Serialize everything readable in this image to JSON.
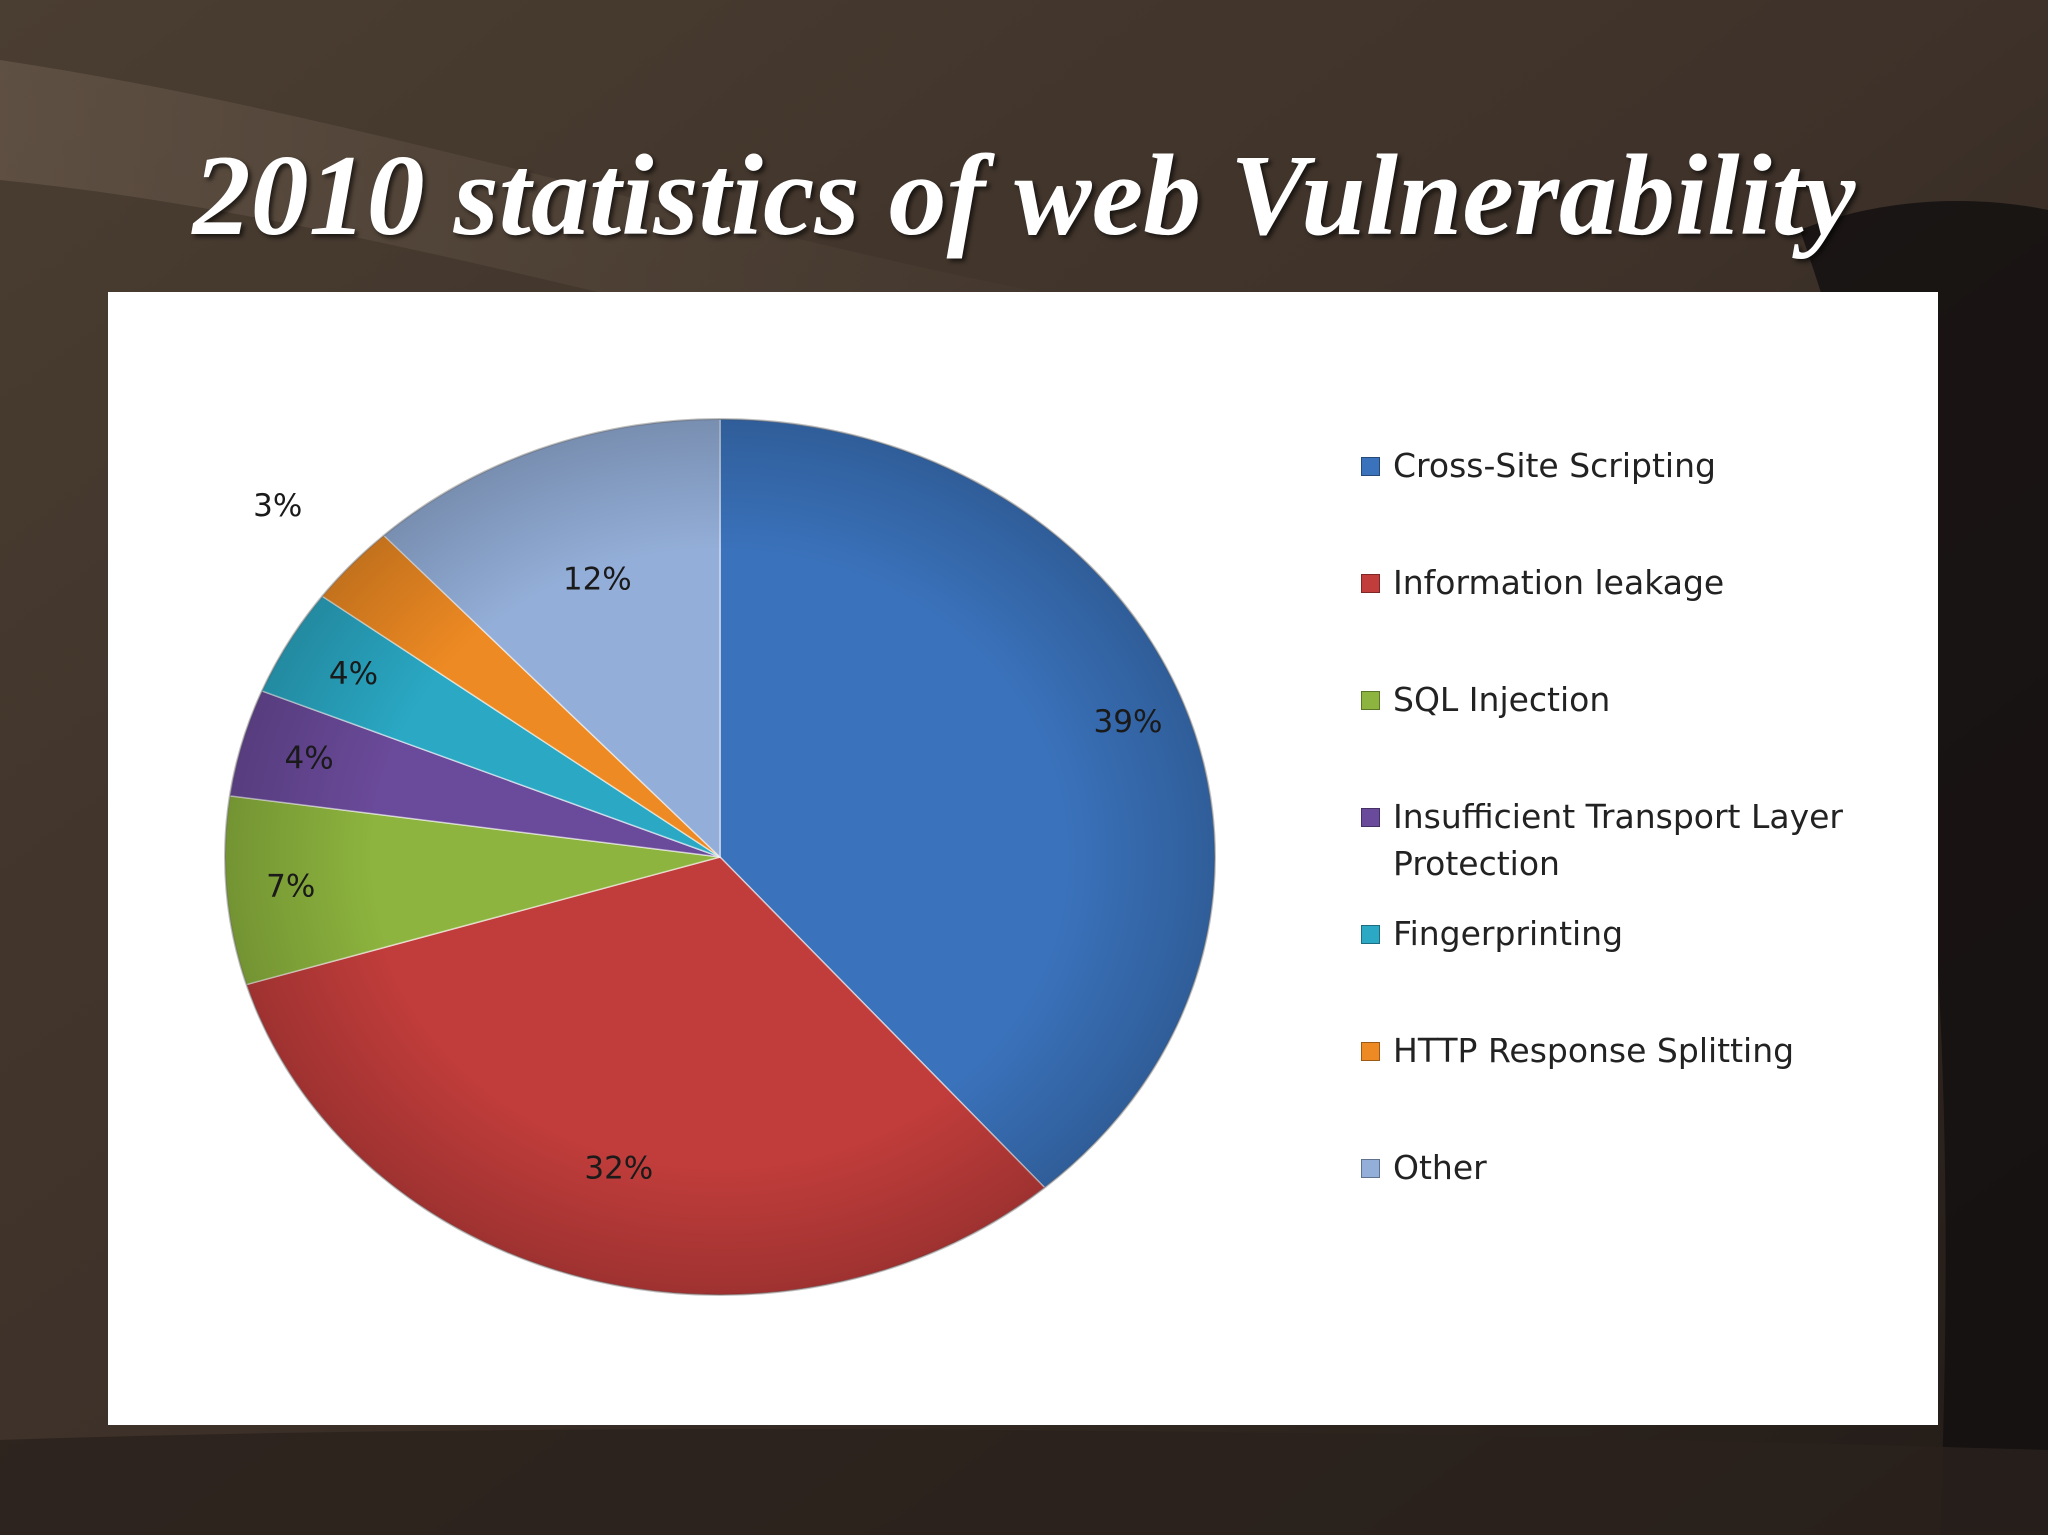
{
  "slide": {
    "title": "2010 statistics of web Vulnerability"
  },
  "chart_data": {
    "type": "pie",
    "title": "",
    "legend_position": "right",
    "start_angle": "12 o'clock, clockwise",
    "slices": [
      {
        "label": "Cross-Site Scripting",
        "value": 39,
        "display": "39%",
        "color": "#3a72bb"
      },
      {
        "label": "Information leakage",
        "value": 32,
        "display": "32%",
        "color": "#c13d3b"
      },
      {
        "label": "SQL Injection",
        "value": 7,
        "display": "7%",
        "color": "#8db43e"
      },
      {
        "label": "Insufficient Transport Layer Protection",
        "value": 4,
        "display": "4%",
        "color": "#6a4a9a"
      },
      {
        "label": "Fingerprinting",
        "value": 4,
        "display": "4%",
        "color": "#2aa8c4"
      },
      {
        "label": "HTTP Response Splitting",
        "value": 3,
        "display": "3%",
        "color": "#ee8a23"
      },
      {
        "label": "Other",
        "value": 12,
        "display": "12%",
        "color": "#93aed8"
      }
    ]
  }
}
